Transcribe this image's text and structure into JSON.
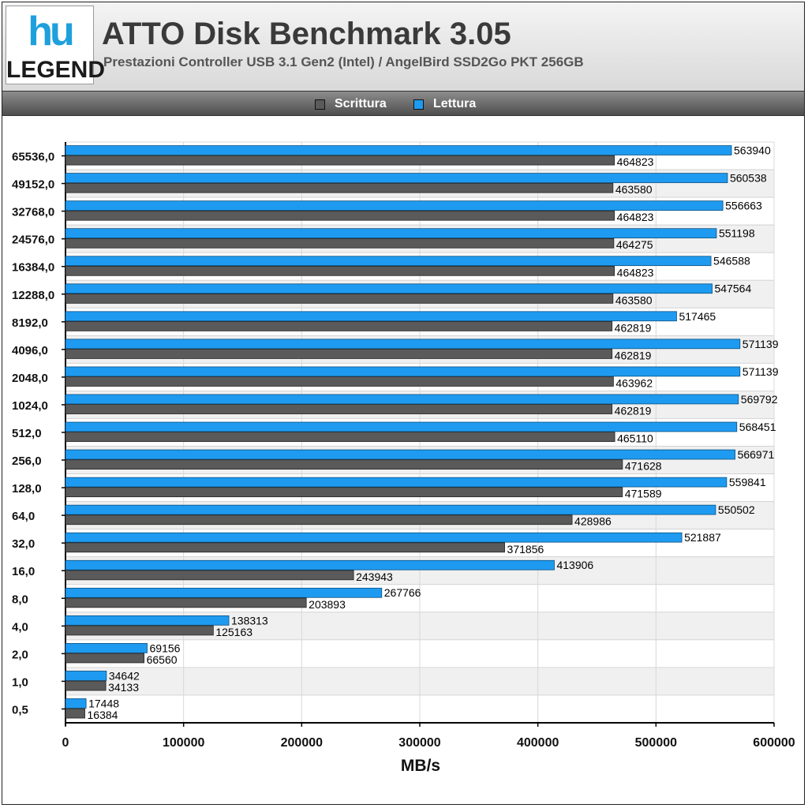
{
  "header": {
    "logo_mark": "hu",
    "logo_word": "LEGEND",
    "title": "ATTO Disk Benchmark 3.05",
    "subtitle": "Prestazioni Controller USB 3.1 Gen2 (Intel) / AngelBird SSD2Go PKT 256GB"
  },
  "colors": {
    "write": "#5a5a5a",
    "read": "#1e9bf0"
  },
  "chart_data": {
    "type": "bar",
    "orientation": "horizontal",
    "xlabel": "MB/s",
    "ylabel": "",
    "xlim": [
      0,
      600000
    ],
    "x_ticks": [
      "0",
      "100000",
      "200000",
      "300000",
      "400000",
      "500000",
      "600000"
    ],
    "grid": "on",
    "legend_position": "top",
    "categories": [
      "65536,0",
      "49152,0",
      "32768,0",
      "24576,0",
      "16384,0",
      "12288,0",
      "8192,0",
      "4096,0",
      "2048,0",
      "1024,0",
      "512,0",
      "256,0",
      "128,0",
      "64,0",
      "32,0",
      "16,0",
      "8,0",
      "4,0",
      "2,0",
      "1,0",
      "0,5"
    ],
    "series": [
      {
        "name": "Scrittura",
        "color": "#5a5a5a",
        "values": [
          464823,
          463580,
          464823,
          464275,
          464823,
          463580,
          462819,
          462819,
          463962,
          462819,
          465110,
          471628,
          471589,
          428986,
          371856,
          243943,
          203893,
          125163,
          66560,
          34133,
          16384
        ]
      },
      {
        "name": "Lettura",
        "color": "#1e9bf0",
        "values": [
          563940,
          560538,
          556663,
          551198,
          546588,
          547564,
          517465,
          571139,
          571139,
          569792,
          568451,
          566971,
          559841,
          550502,
          521887,
          413906,
          267766,
          138313,
          69156,
          34642,
          17448
        ]
      }
    ]
  }
}
